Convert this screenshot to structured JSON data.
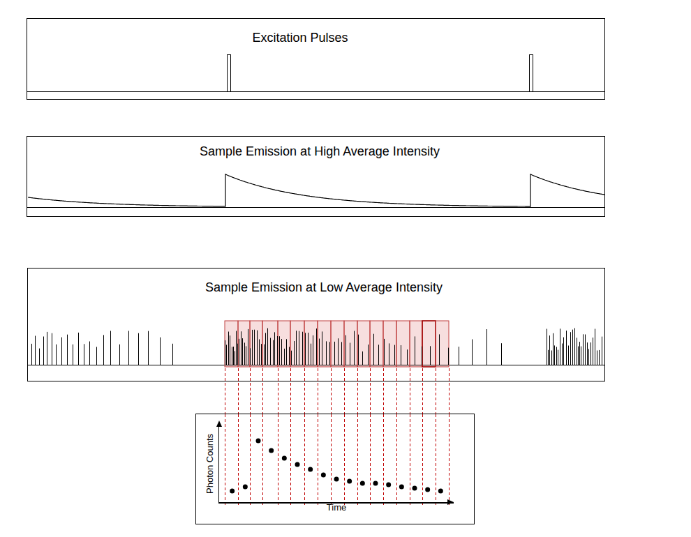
{
  "panels": [
    {
      "title": "Excitation Pulses"
    },
    {
      "title": "Sample Emission at High Average Intensity"
    },
    {
      "title": "Sample Emission at Low Average Intensity"
    }
  ],
  "chart_data": {
    "type": "scatter",
    "x_label": "Time",
    "y_label": "Photon Counts",
    "x": [
      1,
      2,
      3,
      4,
      5,
      6,
      7,
      8,
      9,
      10,
      11,
      12,
      13,
      14,
      15,
      16,
      17
    ],
    "values": [
      16,
      22,
      88,
      74,
      63,
      54,
      47,
      39,
      33,
      30,
      27,
      27,
      25,
      22,
      20,
      18,
      16
    ],
    "xlim": [
      0,
      18
    ],
    "ylim": [
      0,
      110
    ],
    "color": "#000000",
    "marker": "circle",
    "tick_labels": false,
    "grid": false
  }
}
